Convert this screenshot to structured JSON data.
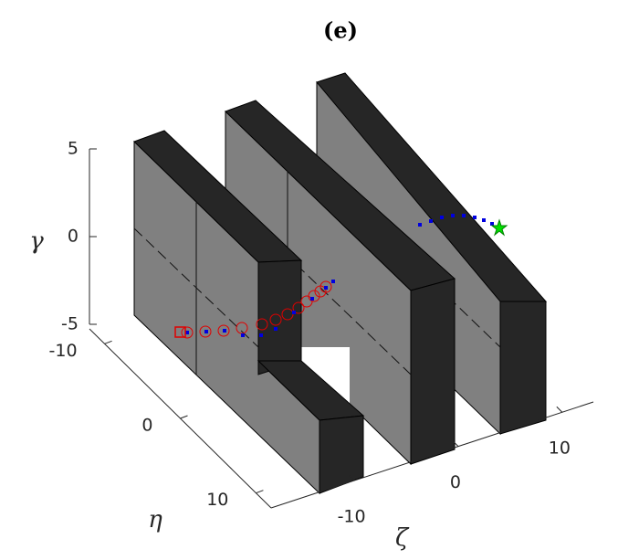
{
  "chart_data": {
    "type": "scatter3d",
    "title": "(e)",
    "xlabel": "ζ",
    "ylabel": "η",
    "zlabel": "γ",
    "xlim": [
      -18,
      13
    ],
    "xticks": [
      -10,
      0,
      10
    ],
    "ylim": [
      -12,
      12
    ],
    "yticks": [
      -10,
      0,
      10
    ],
    "zlim": [
      -5,
      5
    ],
    "zticks": [
      -5,
      0,
      5
    ]
  }
}
